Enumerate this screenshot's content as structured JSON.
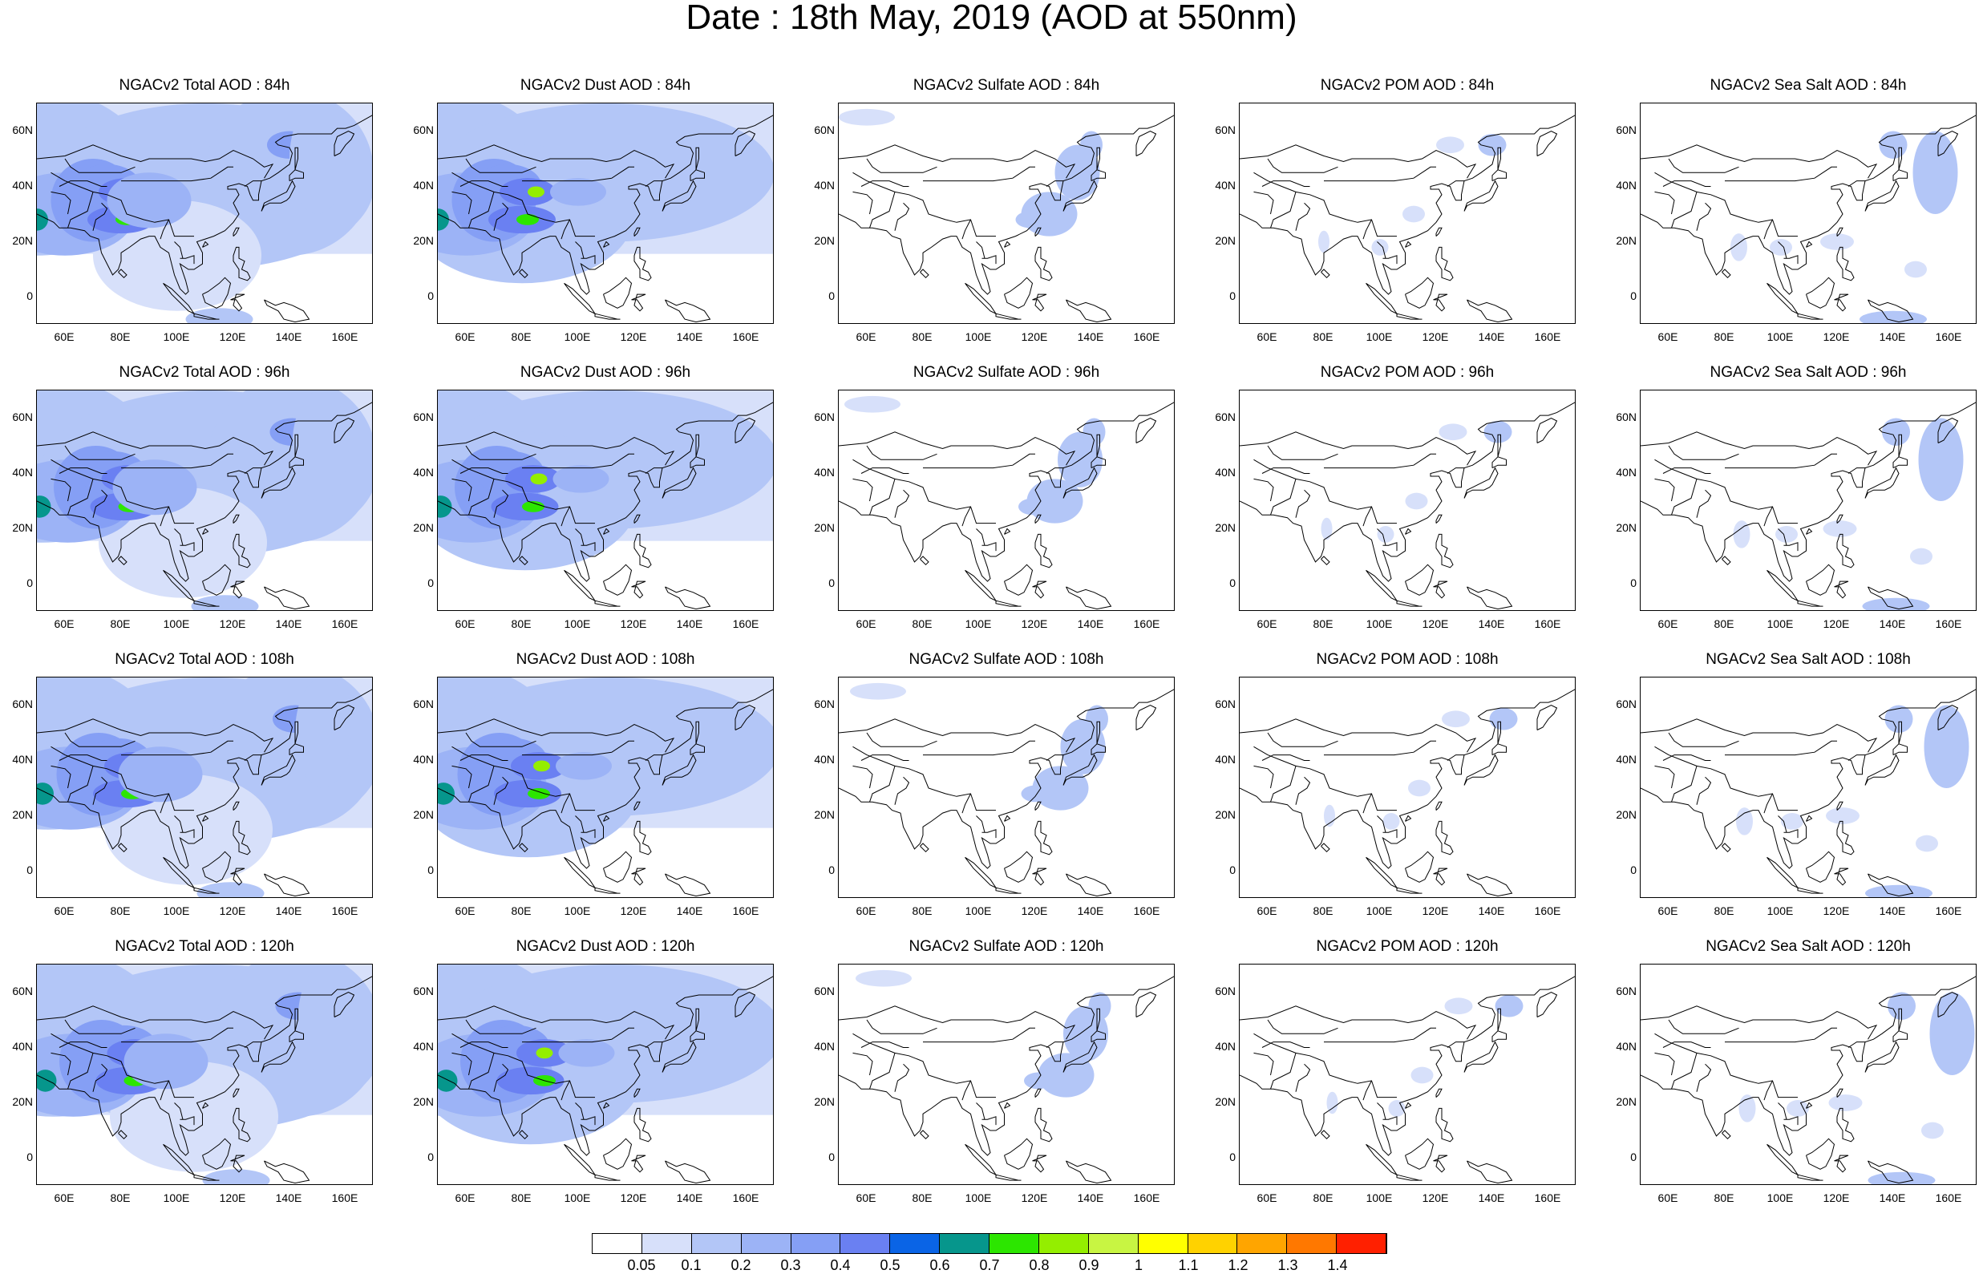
{
  "title": "Date : 18th May, 2019 (AOD at 550nm)",
  "panels": [
    {
      "title": "NGACv2 Total AOD : 84h",
      "variable": "total",
      "hour": 84
    },
    {
      "title": "NGACv2 Dust AOD : 84h",
      "variable": "dust",
      "hour": 84
    },
    {
      "title": "NGACv2 Sulfate AOD : 84h",
      "variable": "sulfate",
      "hour": 84
    },
    {
      "title": "NGACv2 POM AOD : 84h",
      "variable": "pom",
      "hour": 84
    },
    {
      "title": "NGACv2 Sea Salt AOD : 84h",
      "variable": "seasalt",
      "hour": 84
    },
    {
      "title": "NGACv2 Total AOD : 96h",
      "variable": "total",
      "hour": 96
    },
    {
      "title": "NGACv2 Dust AOD : 96h",
      "variable": "dust",
      "hour": 96
    },
    {
      "title": "NGACv2 Sulfate AOD : 96h",
      "variable": "sulfate",
      "hour": 96
    },
    {
      "title": "NGACv2 POM AOD : 96h",
      "variable": "pom",
      "hour": 96
    },
    {
      "title": "NGACv2 Sea Salt AOD : 96h",
      "variable": "seasalt",
      "hour": 96
    },
    {
      "title": "NGACv2 Total AOD : 108h",
      "variable": "total",
      "hour": 108
    },
    {
      "title": "NGACv2 Dust AOD : 108h",
      "variable": "dust",
      "hour": 108
    },
    {
      "title": "NGACv2 Sulfate AOD : 108h",
      "variable": "sulfate",
      "hour": 108
    },
    {
      "title": "NGACv2 POM AOD : 108h",
      "variable": "pom",
      "hour": 108
    },
    {
      "title": "NGACv2 Sea Salt AOD : 108h",
      "variable": "seasalt",
      "hour": 108
    },
    {
      "title": "NGACv2 Total AOD : 120h",
      "variable": "total",
      "hour": 120
    },
    {
      "title": "NGACv2 Dust AOD : 120h",
      "variable": "dust",
      "hour": 120
    },
    {
      "title": "NGACv2 Sulfate AOD : 120h",
      "variable": "sulfate",
      "hour": 120
    },
    {
      "title": "NGACv2 POM AOD : 120h",
      "variable": "pom",
      "hour": 120
    },
    {
      "title": "NGACv2 Sea Salt  AOD : 120h",
      "variable": "seasalt",
      "hour": 120
    }
  ],
  "x_tick_labels": [
    "60E",
    "80E",
    "100E",
    "120E",
    "140E",
    "160E"
  ],
  "y_tick_labels": [
    "60N",
    "40N",
    "20N",
    "0"
  ],
  "map_extent": {
    "lon_min": 50,
    "lon_max": 170,
    "lat_min": -10,
    "lat_max": 70
  },
  "colorbar": {
    "labels": [
      "0.05",
      "0.1",
      "0.2",
      "0.3",
      "0.4",
      "0.5",
      "0.6",
      "0.7",
      "0.8",
      "0.9",
      "1",
      "1.1",
      "1.2",
      "1.3",
      "1.4"
    ],
    "colors": [
      "#ffffff",
      "#d7e0fa",
      "#b3c6f7",
      "#9cb3f6",
      "#859ff5",
      "#6a80f2",
      "#0a64e6",
      "#06968c",
      "#2ce600",
      "#94ee00",
      "#c8f542",
      "#ffff00",
      "#ffd200",
      "#ffa500",
      "#ff7800",
      "#ff2000"
    ]
  },
  "legend_colors": {
    "land_outline": "#000000",
    "background": "#ffffff"
  }
}
